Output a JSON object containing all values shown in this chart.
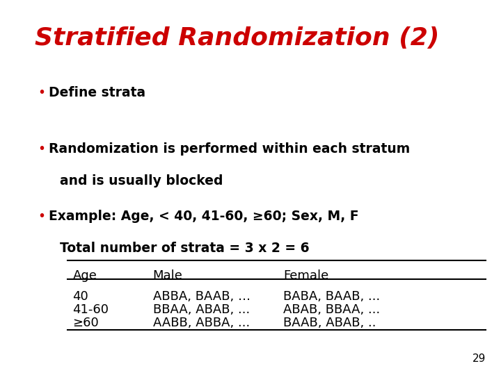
{
  "title": "Stratified Randomization (2)",
  "title_color": "#CC0000",
  "title_fontsize": 26,
  "title_weight": "bold",
  "title_style": "italic",
  "bg_color": "#FFFFFF",
  "bullet1": "Define strata",
  "bullet2_line1": "Randomization is performed within each stratum",
  "bullet2_line2": "and is usually blocked",
  "bullet3_line1": "Example: Age, < 40, 41-60, ≥60; Sex, M, F",
  "bullet3_line2": "Total number of strata = 3 x 2 = 6",
  "bullet_color": "#CC0000",
  "table_headers": [
    "Age",
    "Male",
    "Female"
  ],
  "table_rows": [
    [
      "40",
      "ABBA, BAAB, …",
      "BABA, BAAB, ..."
    ],
    [
      "41-60",
      "BBAA, ABAB, ...",
      "ABAB, BBAA, ..."
    ],
    [
      "≥60",
      "AABB, ABBA, ...",
      "BAAB, ABAB, .."
    ]
  ],
  "page_number": "29",
  "text_color": "#000000",
  "body_fontsize": 13.5,
  "body_weight": "bold",
  "table_fontsize": 13,
  "table_weight": "normal"
}
